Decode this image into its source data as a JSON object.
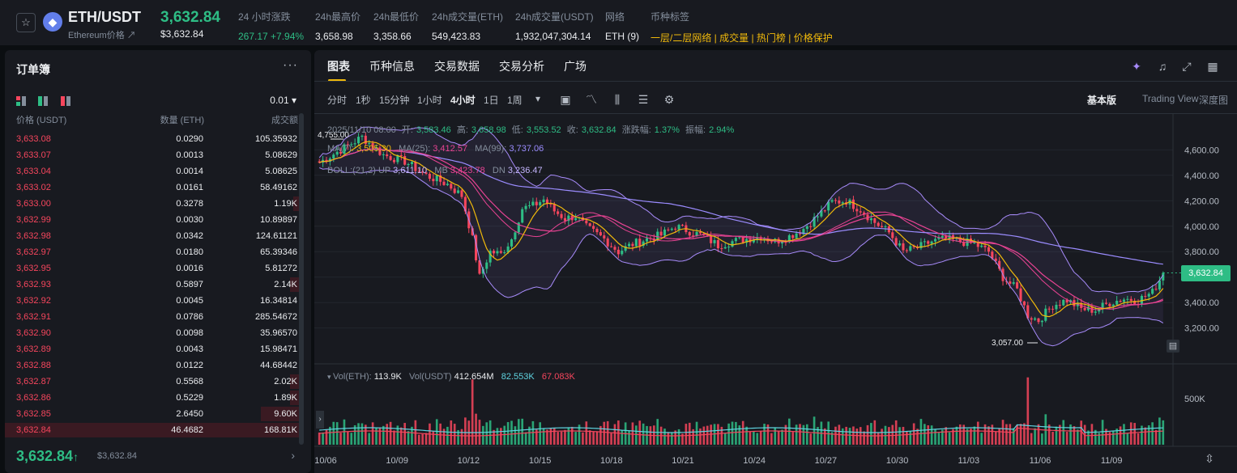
{
  "header": {
    "pair": "ETH/USDT",
    "coin_name": "Ethereum价格",
    "coin_link": "↗",
    "last_price": "3,632.84",
    "last_price_usd": "$3,632.84",
    "stats": [
      {
        "label": "24 小时涨跌",
        "value": "267.17 +7.94%",
        "color": "green"
      },
      {
        "label": "24h最高价",
        "value": "3,658.98",
        "color": "white"
      },
      {
        "label": "24h最低价",
        "value": "3,358.66",
        "color": "white"
      },
      {
        "label": "24h成交量(ETH)",
        "value": "549,423.83",
        "color": "white"
      },
      {
        "label": "24h成交量(USDT)",
        "value": "1,932,047,304.14",
        "color": "white"
      },
      {
        "label": "网络",
        "value": "ETH (9)",
        "color": "white"
      },
      {
        "label": "币种标签",
        "value": "一层/二层网络 | 成交量 | 热门榜 | 价格保护",
        "color": "yellow"
      }
    ]
  },
  "orderbook": {
    "title": "订单簿",
    "precision": "0.01 ▾",
    "col_price": "价格 (USDT)",
    "col_qty": "数量 (ETH)",
    "col_total": "成交额",
    "asks": [
      {
        "price": "3,633.08",
        "qty": "0.0290",
        "total": "105.35932",
        "depth": 0.0
      },
      {
        "price": "3,633.07",
        "qty": "0.0013",
        "total": "5.08629",
        "depth": 0.0
      },
      {
        "price": "3,633.04",
        "qty": "0.0014",
        "total": "5.08625",
        "depth": 0.0
      },
      {
        "price": "3,633.02",
        "qty": "0.0161",
        "total": "58.49162",
        "depth": 0.0
      },
      {
        "price": "3,633.00",
        "qty": "0.3278",
        "total": "1.19K",
        "depth": 0.02
      },
      {
        "price": "3,632.99",
        "qty": "0.0030",
        "total": "10.89897",
        "depth": 0.0
      },
      {
        "price": "3,632.98",
        "qty": "0.0342",
        "total": "124.61121",
        "depth": 0.0
      },
      {
        "price": "3,632.97",
        "qty": "0.0180",
        "total": "65.39346",
        "depth": 0.0
      },
      {
        "price": "3,632.95",
        "qty": "0.0016",
        "total": "5.81272",
        "depth": 0.0
      },
      {
        "price": "3,632.93",
        "qty": "0.5897",
        "total": "2.14K",
        "depth": 0.03
      },
      {
        "price": "3,632.92",
        "qty": "0.0045",
        "total": "16.34814",
        "depth": 0.0
      },
      {
        "price": "3,632.91",
        "qty": "0.0786",
        "total": "285.54672",
        "depth": 0.0
      },
      {
        "price": "3,632.90",
        "qty": "0.0098",
        "total": "35.96570",
        "depth": 0.0
      },
      {
        "price": "3,632.89",
        "qty": "0.0043",
        "total": "15.98471",
        "depth": 0.0
      },
      {
        "price": "3,632.88",
        "qty": "0.0122",
        "total": "44.68442",
        "depth": 0.0
      },
      {
        "price": "3,632.87",
        "qty": "0.5568",
        "total": "2.02K",
        "depth": 0.03
      },
      {
        "price": "3,632.86",
        "qty": "0.5229",
        "total": "1.89K",
        "depth": 0.03
      },
      {
        "price": "3,632.85",
        "qty": "2.6450",
        "total": "9.60K",
        "depth": 0.13
      },
      {
        "price": "3,632.84",
        "qty": "46.4682",
        "total": "168.81K",
        "depth": 1.0
      }
    ],
    "last_price": "3,632.84",
    "last_arrow": "↑",
    "last_price_usd": "$3,632.84",
    "more": "···",
    "next": "›"
  },
  "chart_panel": {
    "tabs": [
      "图表",
      "币种信息",
      "交易数据",
      "交易分析",
      "广场"
    ],
    "intervals": [
      "分时",
      "1秒",
      "15分钟",
      "1小时",
      "4小时",
      "1日",
      "1周"
    ],
    "interval_more": "▾",
    "active_interval": "4小时",
    "versions": [
      "基本版",
      "Trading View",
      "深度图"
    ],
    "ohlc": {
      "date": "2025/11/10 08:00",
      "open_label": "开:",
      "open": "3,583.46",
      "high_label": "高:",
      "high": "3,658.98",
      "low_label": "低:",
      "low": "3,553.52",
      "close_label": "收:",
      "close": "3,632.84",
      "chg_label": "涨跌幅:",
      "chg": "1.37%",
      "amp_label": "振幅:",
      "amp": "2.94%"
    },
    "ma": {
      "l1": "MA(7):",
      "v1": "3,505.30",
      "l2": "MA(25):",
      "v2": "3,412.57",
      "l3": "MA(99):",
      "v3": "3,737.06"
    },
    "boll": {
      "l0": "BOLL:(21,2)",
      "l1": "UP",
      "v1": "3,611.10",
      "l2": "MB",
      "v2": "3,423.78",
      "l3": "DN",
      "v3": "3,236.47"
    },
    "vol": {
      "l1": "Vol(ETH):",
      "v1": "113.9K",
      "l2": "Vol(USDT)",
      "v2": "412.654M",
      "v3": "82.553K",
      "v4": "67.083K"
    },
    "price_tag": "3,632.84",
    "high_mark": "4,755.00",
    "low_mark": "3,057.00",
    "vol_axis_label": "500K",
    "colors": {
      "up": "#2ebd85",
      "down": "#f6465d",
      "ma7": "#f0b90b",
      "ma25": "#e84393",
      "ma99": "#9b8cff",
      "boll": "#a78bfa"
    }
  },
  "chart_data": {
    "type": "candlestick",
    "title": "ETH/USDT 4小时",
    "y_ticks": [
      "4,600.00",
      "4,400.00",
      "4,200.00",
      "4,000.00",
      "3,800.00",
      "3,600.00",
      "3,400.00",
      "3,200.00"
    ],
    "y_tick_values": [
      4600,
      4400,
      4200,
      4000,
      3800,
      3600,
      3400,
      3200
    ],
    "ylim": [
      3020,
      4780
    ],
    "x_ticks": [
      "10/06",
      "10/09",
      "10/12",
      "10/15",
      "10/18",
      "10/21",
      "10/24",
      "10/27",
      "10/30",
      "11/03",
      "11/06",
      "11/09"
    ],
    "keypoints": [
      [
        0,
        4500
      ],
      [
        6,
        4600
      ],
      [
        12,
        4700
      ],
      [
        18,
        4560
      ],
      [
        24,
        4510
      ],
      [
        30,
        4400
      ],
      [
        36,
        4330
      ],
      [
        40,
        4240
      ],
      [
        43,
        3900
      ],
      [
        45,
        3600
      ],
      [
        48,
        3800
      ],
      [
        51,
        3780
      ],
      [
        54,
        3900
      ],
      [
        57,
        4140
      ],
      [
        60,
        4160
      ],
      [
        63,
        4210
      ],
      [
        66,
        4120
      ],
      [
        69,
        4060
      ],
      [
        72,
        4080
      ],
      [
        75,
        3990
      ],
      [
        80,
        3900
      ],
      [
        84,
        3800
      ],
      [
        88,
        3860
      ],
      [
        92,
        3900
      ],
      [
        96,
        3930
      ],
      [
        100,
        4000
      ],
      [
        104,
        3960
      ],
      [
        108,
        3920
      ],
      [
        112,
        3850
      ],
      [
        116,
        3880
      ],
      [
        120,
        3900
      ],
      [
        124,
        3920
      ],
      [
        128,
        3880
      ],
      [
        132,
        3920
      ],
      [
        136,
        3980
      ],
      [
        140,
        4080
      ],
      [
        144,
        4190
      ],
      [
        148,
        4200
      ],
      [
        152,
        4130
      ],
      [
        156,
        4030
      ],
      [
        160,
        3950
      ],
      [
        164,
        3800
      ],
      [
        168,
        3830
      ],
      [
        172,
        3880
      ],
      [
        176,
        3900
      ],
      [
        180,
        3880
      ],
      [
        184,
        3860
      ],
      [
        188,
        3800
      ],
      [
        192,
        3600
      ],
      [
        196,
        3500
      ],
      [
        199,
        3300
      ],
      [
        202,
        3260
      ],
      [
        206,
        3380
      ],
      [
        210,
        3420
      ],
      [
        214,
        3350
      ],
      [
        218,
        3340
      ],
      [
        222,
        3400
      ],
      [
        226,
        3430
      ],
      [
        230,
        3420
      ],
      [
        234,
        3480
      ],
      [
        237,
        3630
      ]
    ],
    "candle_count": 238,
    "volume_axis": {
      "label": "500K",
      "value": 500000
    }
  }
}
